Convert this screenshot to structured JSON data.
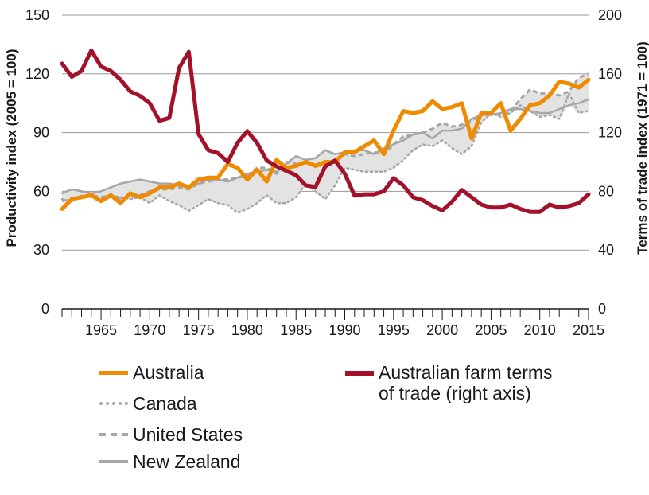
{
  "chart_data": {
    "type": "line",
    "xlim": [
      1961,
      2015
    ],
    "x_ticks": [
      "1965",
      "1970",
      "1975",
      "1980",
      "1985",
      "1990",
      "1995",
      "2000",
      "2005",
      "2010",
      "2015"
    ],
    "y_left": {
      "label": "Productivity index (2005 = 100)",
      "lim": [
        0,
        150
      ],
      "ticks": [
        "0",
        "30",
        "60",
        "90",
        "120",
        "150"
      ]
    },
    "y_right": {
      "label": "Terms of trade index (1971 = 100)",
      "lim": [
        0,
        200
      ],
      "ticks": [
        "0",
        "40",
        "80",
        "120",
        "160",
        "200"
      ]
    },
    "grid": "horizontal",
    "legend_position": "bottom",
    "shaded_band": "range of Canada, United States and New Zealand",
    "series": [
      {
        "name": "Australia",
        "axis": "left",
        "color": "#f08a00",
        "style": "solid",
        "x": [
          1961,
          1962,
          1963,
          1964,
          1965,
          1966,
          1967,
          1968,
          1969,
          1970,
          1971,
          1972,
          1973,
          1974,
          1975,
          1976,
          1977,
          1978,
          1979,
          1980,
          1981,
          1982,
          1983,
          1984,
          1985,
          1986,
          1987,
          1988,
          1989,
          1990,
          1991,
          1992,
          1993,
          1994,
          1995,
          1996,
          1997,
          1998,
          1999,
          2000,
          2001,
          2002,
          2003,
          2004,
          2005,
          2006,
          2007,
          2008,
          2009,
          2010,
          2011,
          2012,
          2013,
          2014,
          2015
        ],
        "values": [
          51,
          56,
          57,
          58,
          55,
          58,
          54,
          59,
          57,
          59,
          62,
          62,
          64,
          62,
          66,
          67,
          67,
          74,
          72,
          66,
          71,
          65,
          76,
          72,
          73,
          75,
          73,
          75,
          75,
          80,
          80,
          83,
          86,
          79,
          91,
          101,
          100,
          101,
          106,
          102,
          103,
          105,
          87,
          100,
          100,
          105,
          91,
          97,
          104,
          105,
          109,
          116,
          115,
          113,
          117
        ]
      },
      {
        "name": "Canada",
        "axis": "left",
        "color": "#a6a6a6",
        "style": "dotted",
        "x": [
          1961,
          1962,
          1963,
          1964,
          1965,
          1966,
          1967,
          1968,
          1969,
          1970,
          1971,
          1972,
          1973,
          1974,
          1975,
          1976,
          1977,
          1978,
          1979,
          1980,
          1981,
          1982,
          1983,
          1984,
          1985,
          1986,
          1987,
          1988,
          1989,
          1990,
          1991,
          1992,
          1993,
          1994,
          1995,
          1996,
          1997,
          1998,
          1999,
          2000,
          2001,
          2002,
          2003,
          2004,
          2005,
          2006,
          2007,
          2008,
          2009,
          2010,
          2011,
          2012,
          2013,
          2014,
          2015
        ],
        "values": [
          56,
          55,
          58,
          57,
          56,
          58,
          57,
          56,
          57,
          54,
          58,
          55,
          53,
          50,
          53,
          56,
          54,
          53,
          49,
          51,
          54,
          58,
          54,
          54,
          57,
          64,
          60,
          56,
          63,
          72,
          71,
          70,
          70,
          70,
          72,
          76,
          81,
          84,
          83,
          86,
          82,
          79,
          83,
          95,
          100,
          98,
          100,
          104,
          101,
          98,
          99,
          97,
          110,
          100,
          101
        ]
      },
      {
        "name": "United States",
        "axis": "left",
        "color": "#a6a6a6",
        "style": "dashed",
        "x": [
          1961,
          1962,
          1963,
          1964,
          1965,
          1966,
          1967,
          1968,
          1969,
          1970,
          1971,
          1972,
          1973,
          1974,
          1975,
          1976,
          1977,
          1978,
          1979,
          1980,
          1981,
          1982,
          1983,
          1984,
          1985,
          1986,
          1987,
          1988,
          1989,
          1990,
          1991,
          1992,
          1993,
          1994,
          1995,
          1996,
          1997,
          1998,
          1999,
          2000,
          2001,
          2002,
          2003,
          2004,
          2005,
          2006,
          2007,
          2008,
          2009,
          2010,
          2011,
          2012,
          2013,
          2014,
          2015
        ],
        "values": [
          55,
          56,
          57,
          58,
          57,
          58,
          56,
          57,
          58,
          60,
          61,
          61,
          62,
          61,
          64,
          65,
          66,
          66,
          67,
          68,
          72,
          72,
          69,
          75,
          74,
          75,
          74,
          72,
          76,
          79,
          78,
          79,
          80,
          79,
          84,
          88,
          89,
          90,
          92,
          95,
          93,
          94,
          96,
          99,
          100,
          99,
          101,
          107,
          112,
          110,
          110,
          109,
          111,
          118,
          120
        ]
      },
      {
        "name": "New Zealand",
        "axis": "left",
        "color": "#a6a6a6",
        "style": "solid",
        "x": [
          1961,
          1962,
          1963,
          1964,
          1965,
          1966,
          1967,
          1968,
          1969,
          1970,
          1971,
          1972,
          1973,
          1974,
          1975,
          1976,
          1977,
          1978,
          1979,
          1980,
          1981,
          1982,
          1983,
          1984,
          1985,
          1986,
          1987,
          1988,
          1989,
          1990,
          1991,
          1992,
          1993,
          1994,
          1995,
          1996,
          1997,
          1998,
          1999,
          2000,
          2001,
          2002,
          2003,
          2004,
          2005,
          2006,
          2007,
          2008,
          2009,
          2010,
          2011,
          2012,
          2013,
          2014,
          2015
        ],
        "values": [
          59,
          61,
          60,
          59,
          60,
          62,
          64,
          65,
          66,
          65,
          64,
          64,
          63,
          62,
          64,
          66,
          66,
          65,
          67,
          69,
          70,
          71,
          70,
          74,
          78,
          76,
          77,
          81,
          79,
          80,
          81,
          81,
          79,
          82,
          84,
          86,
          89,
          90,
          87,
          91,
          91,
          92,
          97,
          99,
          99,
          100,
          102,
          102,
          101,
          100,
          100,
          102,
          104,
          105,
          107
        ]
      },
      {
        "name": "Australian farm terms of trade (right axis)",
        "axis": "right",
        "color": "#a3122a",
        "style": "solid",
        "x": [
          1961,
          1962,
          1963,
          1964,
          1965,
          1966,
          1967,
          1968,
          1969,
          1970,
          1971,
          1972,
          1973,
          1974,
          1975,
          1976,
          1977,
          1978,
          1979,
          1980,
          1981,
          1982,
          1983,
          1984,
          1985,
          1986,
          1987,
          1988,
          1989,
          1990,
          1991,
          1992,
          1993,
          1994,
          1995,
          1996,
          1997,
          1998,
          1999,
          2000,
          2001,
          2002,
          2003,
          2004,
          2005,
          2006,
          2007,
          2008,
          2009,
          2010,
          2011,
          2012,
          2013,
          2014,
          2015
        ],
        "values": [
          167,
          158,
          162,
          176,
          165,
          162,
          156,
          148,
          145,
          140,
          128,
          130,
          164,
          175,
          119,
          108,
          106,
          100,
          113,
          121,
          113,
          101,
          97,
          94,
          91,
          84,
          83,
          97,
          101,
          92,
          77,
          78,
          78,
          80,
          89,
          84,
          76,
          74,
          70,
          67,
          73,
          81,
          76,
          71,
          69,
          69,
          71,
          68,
          66,
          66,
          71,
          69,
          70,
          72,
          78
        ]
      }
    ]
  },
  "legend": {
    "australia": "Australia",
    "canada": "Canada",
    "united_states": "United States",
    "new_zealand": "New Zealand",
    "terms_line1": "Australian farm terms",
    "terms_line2": "of trade (right axis)"
  }
}
